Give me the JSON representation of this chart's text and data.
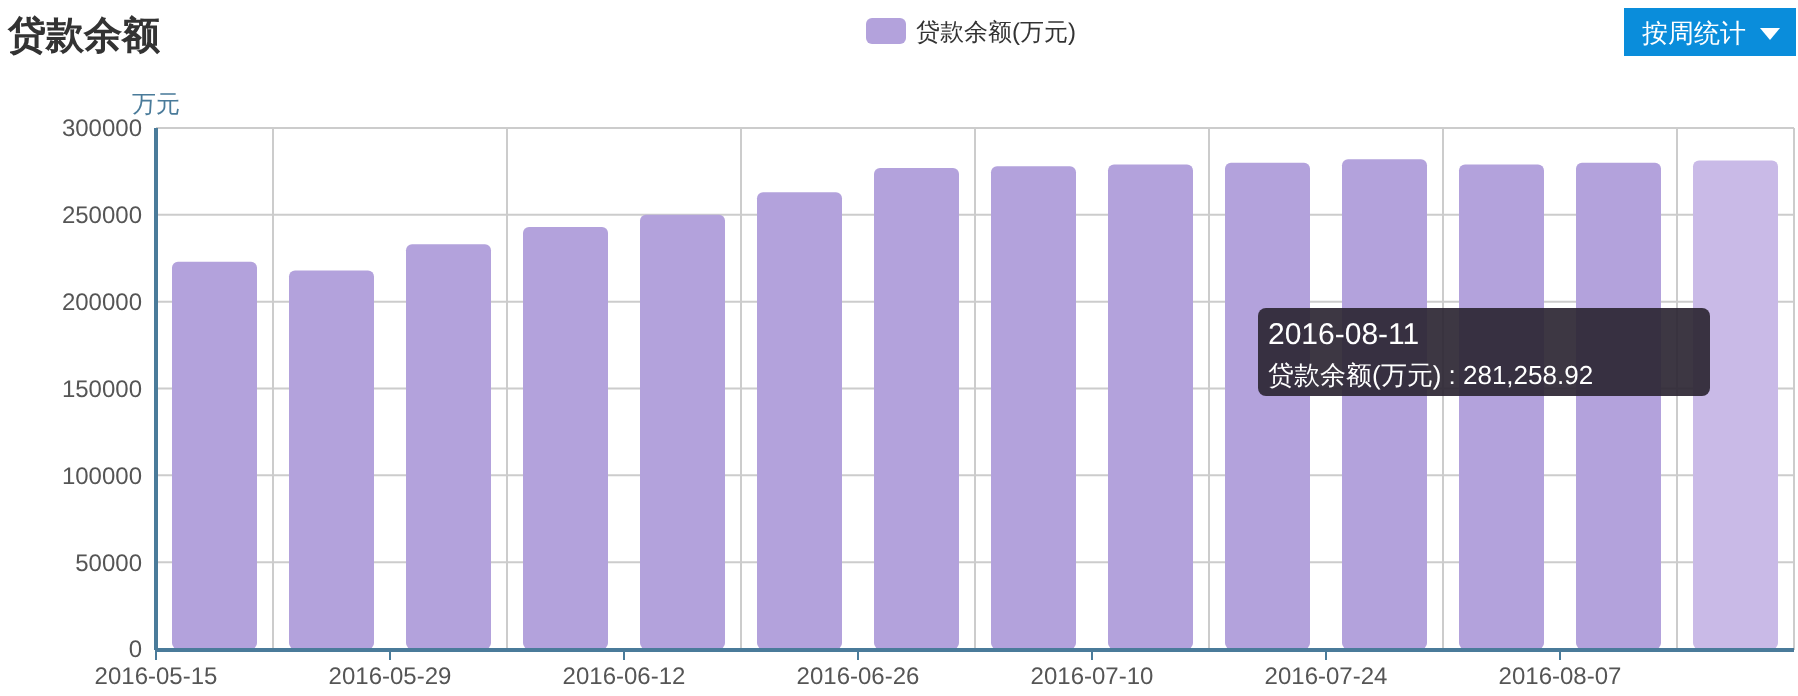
{
  "chart_data": {
    "type": "bar",
    "title": "贷款余额",
    "ylabel": "万元",
    "categories": [
      "2016-05-15",
      null,
      "2016-05-29",
      null,
      "2016-06-12",
      null,
      "2016-06-26",
      null,
      "2016-07-10",
      null,
      "2016-07-24",
      null,
      "2016-08-07",
      null
    ],
    "series": [
      {
        "name": "贷款余额(万元)",
        "color": "#b3a2dc",
        "colors": [
          "#b3a2dc",
          "#b3a2dc",
          "#b3a2dc",
          "#b3a2dc",
          "#b3a2dc",
          "#b3a2dc",
          "#b3a2dc",
          "#b3a2dc",
          "#b3a2dc",
          "#b3a2dc",
          "#b3a2dc",
          "#b3a2dc",
          "#b3a2dc",
          "#c9bae7"
        ],
        "values": [
          223000,
          218000,
          233000,
          243000,
          250000,
          263000,
          277000,
          278000,
          279000,
          280000,
          282000,
          279000,
          280000,
          281258.92
        ]
      }
    ],
    "ylim": [
      0,
      300000
    ],
    "yticks": [
      0,
      50000,
      100000,
      150000,
      200000,
      250000,
      300000
    ],
    "grid": true,
    "legend": "top",
    "annotations": [
      "按周统计",
      "2016-08-11",
      "贷款余额(万元) : 281,258.92"
    ]
  }
}
